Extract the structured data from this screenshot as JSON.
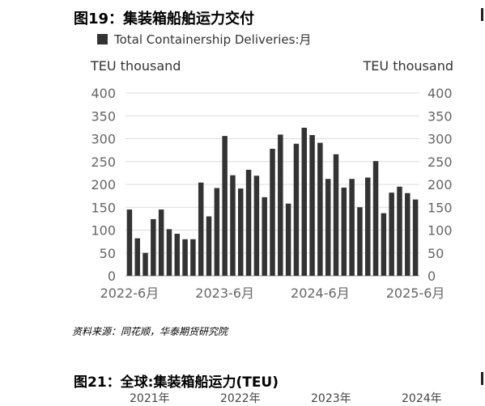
{
  "figure": {
    "title": "图19：集装箱船舶运力交付",
    "source": "资料来源：同花顺，华泰期货研究院"
  },
  "chart_data": {
    "type": "bar",
    "title": "",
    "legend": "top-left",
    "grid": true,
    "ylabel_left": "TEU thousand",
    "ylabel_right": "TEU thousand",
    "ylim": [
      0,
      400
    ],
    "yticks": [
      0,
      50,
      100,
      150,
      200,
      250,
      300,
      350,
      400
    ],
    "xtick_labels": [
      {
        "label": "2022-6月",
        "index": 0
      },
      {
        "label": "2023-6月",
        "index": 12
      },
      {
        "label": "2024-6月",
        "index": 24
      },
      {
        "label": "2025-6月",
        "index": 36
      }
    ],
    "series": [
      {
        "name": "Total Containership Deliveries:月",
        "color": "#333333",
        "values": [
          145,
          82,
          50,
          124,
          145,
          102,
          92,
          80,
          80,
          204,
          130,
          192,
          306,
          220,
          191,
          232,
          219,
          172,
          278,
          309,
          158,
          289,
          324,
          308,
          291,
          212,
          266,
          193,
          212,
          150,
          215,
          251,
          137,
          182,
          195,
          181,
          167
        ]
      }
    ]
  },
  "next_figure": {
    "title": "图21：全球:集装箱船运力(TEU)",
    "tick_labels": [
      "2021年",
      "2022年",
      "2023年",
      "2024年"
    ]
  }
}
